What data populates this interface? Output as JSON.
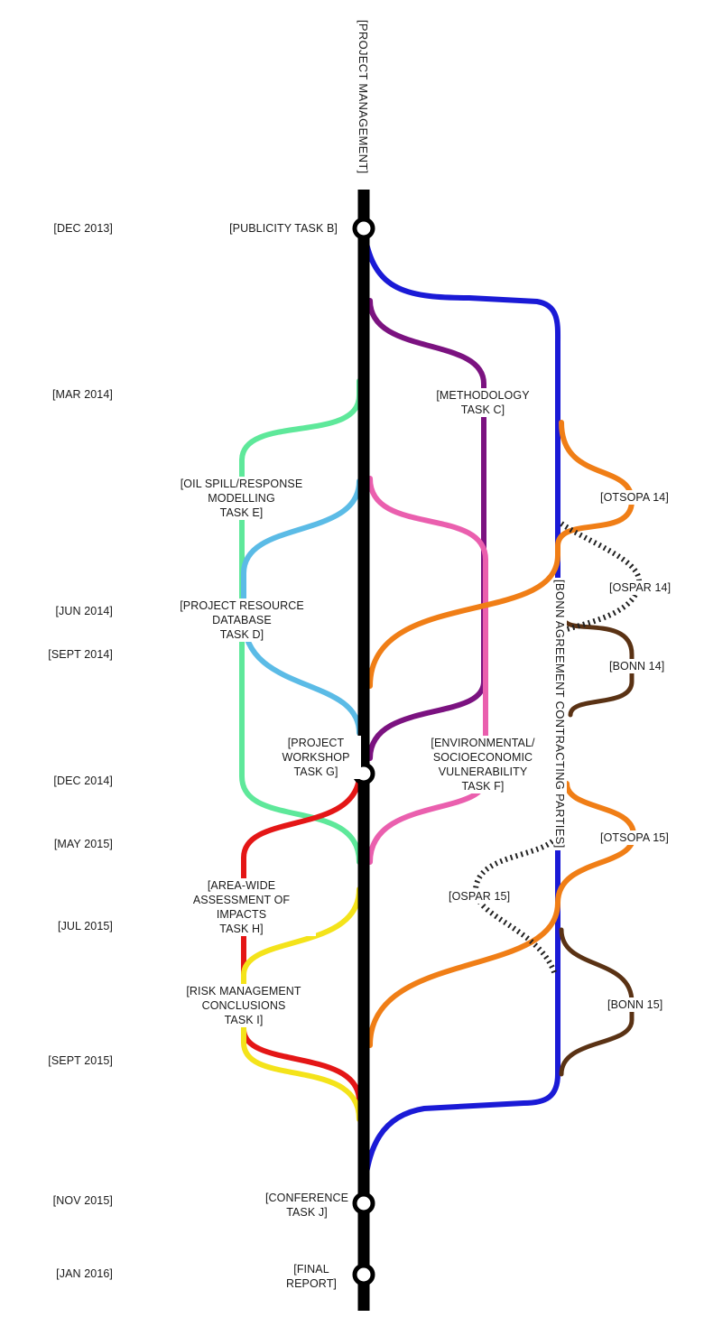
{
  "diagram": {
    "spine_title": "[PROJECT MANAGEMENT]",
    "side_title": "[BONN AGREEMENT CONTRACTING PARTIES]",
    "dates": [
      "[DEC 2013]",
      "[MAR 2014]",
      "[JUN 2014]",
      "[SEPT 2014]",
      "[DEC 2014]",
      "[MAY 2015]",
      "[JUL 2015]",
      "[SEPT 2015]",
      "[NOV 2015]",
      "[JAN 2016]"
    ],
    "milestones": {
      "publicity": "[PUBLICITY TASK B]",
      "workshop": "[PROJECT\nWORKSHOP\nTASK G]",
      "conference": "[CONFERENCE\nTASK J]",
      "final": "[FINAL\nREPORT]"
    },
    "tasks": {
      "methodology": "[METHODOLOGY\nTASK C]",
      "oilspill": "[OIL SPILL/RESPONSE\nMODELLING\nTASK E]",
      "database": "[PROJECT RESOURCE DATABASE\nTASK D]",
      "environmental": "[ENVIRONMENTAL/\nSOCIOECONOMIC\nVULNERABILITY\nTASK F]",
      "areawide": "[AREA-WIDE\nASSESSMENT OF IMPACTS\nTASK H]",
      "risk": "[RISK MANAGEMENT\nCONCLUSIONS\nTASK I]"
    },
    "meetings": {
      "otsopa14": "[OTSOPA 14]",
      "ospar14": "[OSPAR 14]",
      "bonn14": "[BONN 14]",
      "otsopa15": "[OTSOPA 15]",
      "ospar15": "[OSPAR 15]",
      "bonn15": "[BONN 15]"
    }
  },
  "colors": {
    "spine": "#000000",
    "publicity": "#1a1ad6",
    "methodology": "#7b1280",
    "oilspill": "#5ee89a",
    "database": "#5bbbe6",
    "environmental": "#ea5fae",
    "orange": "#f07e16",
    "ospar": "#222222",
    "bonn": "#5a3214",
    "red": "#e41616",
    "yellow": "#f4e31a"
  }
}
